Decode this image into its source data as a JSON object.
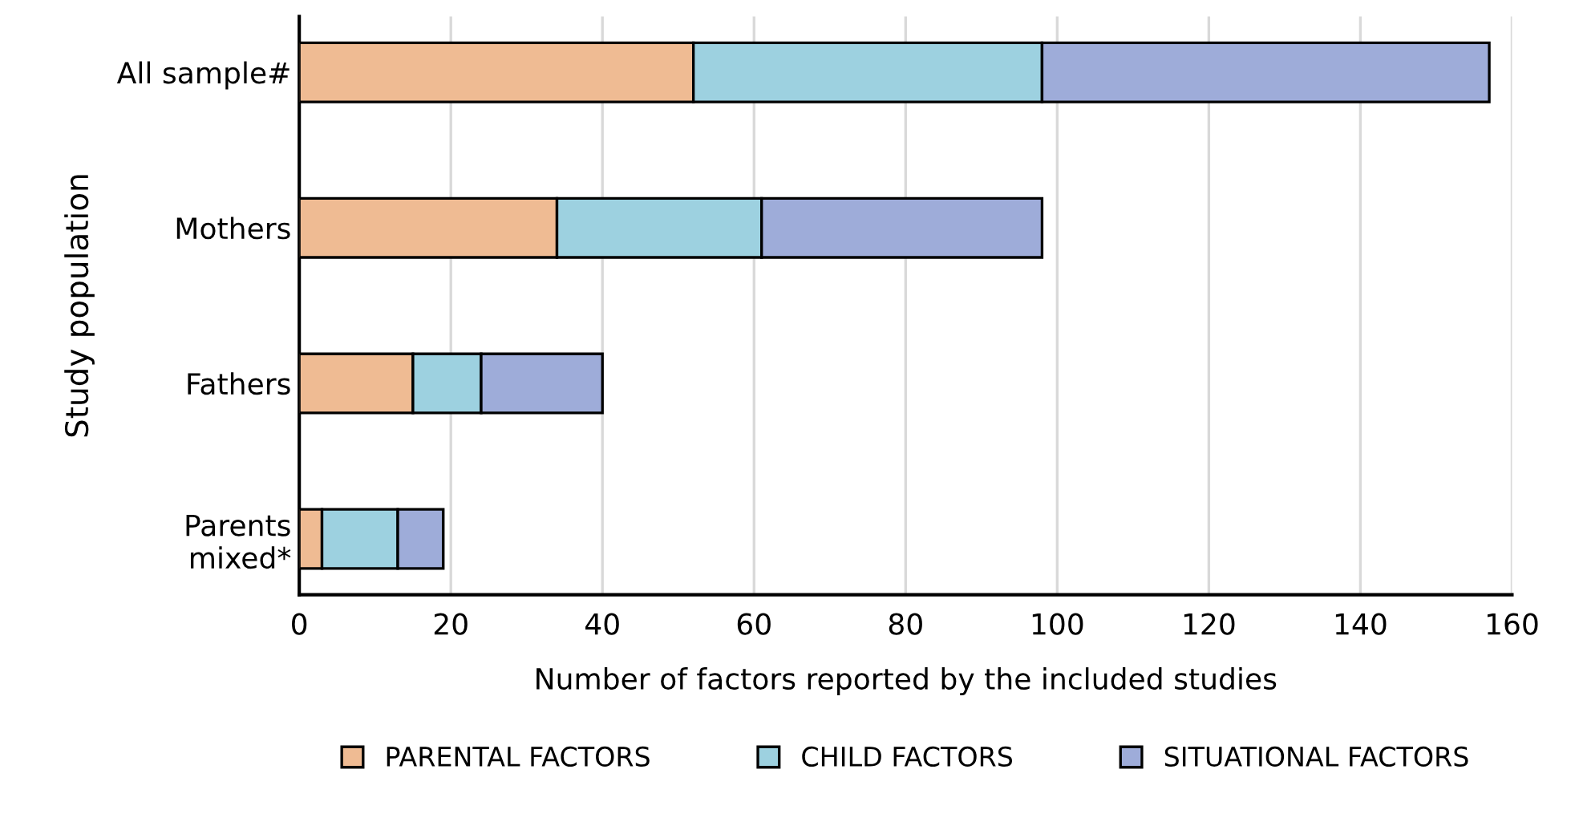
{
  "chart_data": {
    "type": "bar",
    "orientation": "horizontal",
    "stacked": true,
    "categories": [
      "All sample#",
      "Mothers",
      "Fathers",
      "Parents\nmixed*"
    ],
    "series": [
      {
        "name": "PARENTAL FACTORS",
        "color": "#efbb93",
        "values": [
          52,
          34,
          15,
          3
        ]
      },
      {
        "name": "CHILD FACTORS",
        "color": "#9dd1e0",
        "values": [
          46,
          27,
          9,
          10
        ]
      },
      {
        "name": "SITUATIONAL FACTORS",
        "color": "#9eacd9",
        "values": [
          59,
          37,
          16,
          6
        ]
      }
    ],
    "xlabel": "Number of factors reported by the included studies",
    "ylabel": "Study population",
    "xlim": [
      0,
      160
    ],
    "xticks": [
      0,
      20,
      40,
      60,
      80,
      100,
      120,
      140,
      160
    ],
    "grid": "x",
    "legend": "bottom"
  }
}
